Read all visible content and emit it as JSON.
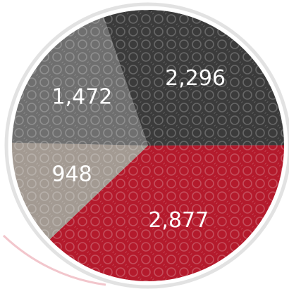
{
  "chart_data": {
    "type": "pie",
    "categories": [
      null,
      null,
      null,
      null
    ],
    "values": [
      2296,
      2877,
      948,
      1472
    ],
    "value_labels": [
      "2,296",
      "2,877",
      "948",
      "1,472"
    ],
    "colors": [
      "#3b3b3b",
      "#b41a2c",
      "#a39a92",
      "#6f6f6f"
    ]
  }
}
